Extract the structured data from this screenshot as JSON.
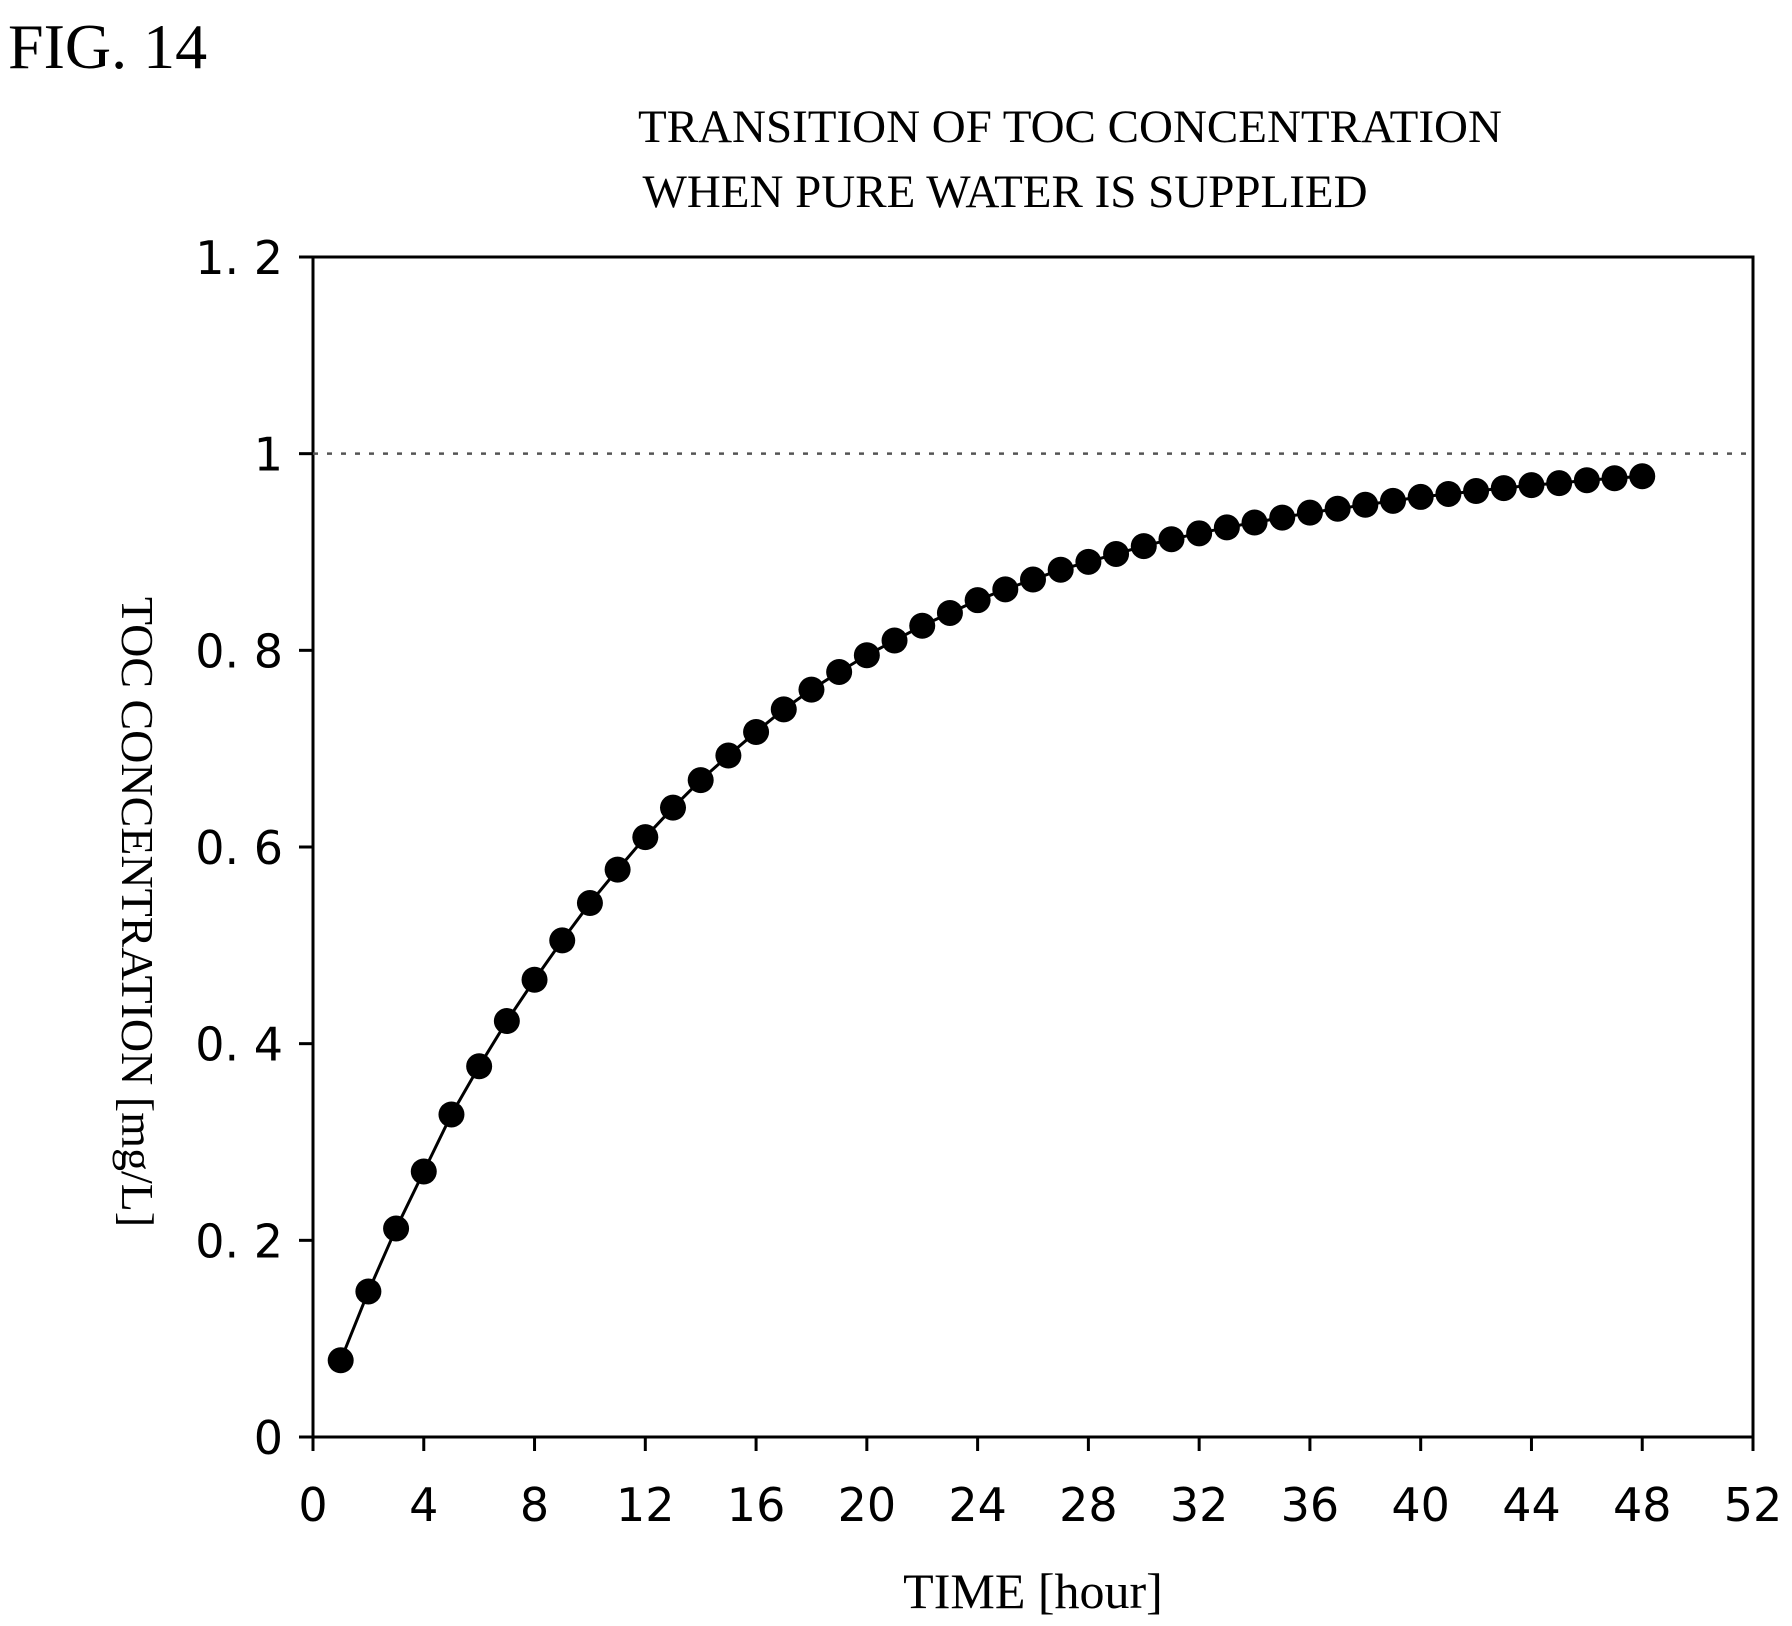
{
  "figure_label": "FIG. 14",
  "chart_data": {
    "type": "scatter",
    "title_line1": "TRANSITION OF TOC CONCENTRATION",
    "title_line2": "WHEN PURE WATER IS SUPPLIED",
    "xlabel": "TIME [hour]",
    "ylabel": "TOC CONCENTRATION [mg/L]",
    "xlim": [
      0,
      52
    ],
    "ylim": [
      0,
      1.2
    ],
    "xticks": [
      0,
      4,
      8,
      12,
      16,
      20,
      24,
      28,
      32,
      36,
      40,
      44,
      48,
      52
    ],
    "yticks": [
      0,
      0.2,
      0.4,
      0.6,
      0.8,
      1.0,
      1.2
    ],
    "ytick_labels": [
      "0",
      "0. 2",
      "0. 4",
      "0. 6",
      "0. 8",
      "1",
      "1. 2"
    ],
    "reference_line": {
      "y": 1.0,
      "style": "dotted"
    },
    "grid": false,
    "marker": "filled-circle",
    "connected": true,
    "x": [
      1,
      2,
      3,
      4,
      5,
      6,
      7,
      8,
      9,
      10,
      11,
      12,
      13,
      14,
      15,
      16,
      17,
      18,
      19,
      20,
      21,
      22,
      23,
      24,
      25,
      26,
      27,
      28,
      29,
      30,
      31,
      32,
      33,
      34,
      35,
      36,
      37,
      38,
      39,
      40,
      41,
      42,
      43,
      44,
      45,
      46,
      47,
      48
    ],
    "y": [
      0.078,
      0.148,
      0.212,
      0.27,
      0.328,
      0.377,
      0.423,
      0.465,
      0.505,
      0.543,
      0.577,
      0.61,
      0.64,
      0.668,
      0.693,
      0.717,
      0.74,
      0.76,
      0.778,
      0.795,
      0.81,
      0.825,
      0.838,
      0.851,
      0.862,
      0.872,
      0.882,
      0.89,
      0.898,
      0.906,
      0.913,
      0.919,
      0.925,
      0.93,
      0.935,
      0.94,
      0.944,
      0.948,
      0.952,
      0.956,
      0.959,
      0.962,
      0.965,
      0.968,
      0.97,
      0.973,
      0.975,
      0.977
    ]
  }
}
